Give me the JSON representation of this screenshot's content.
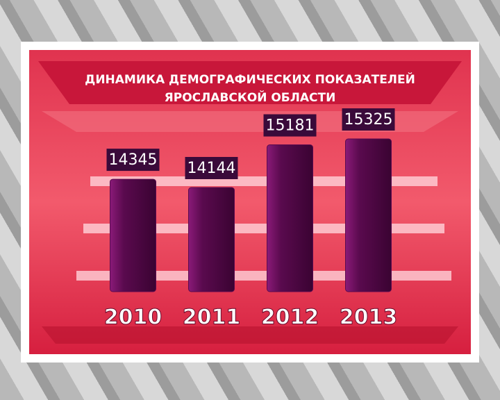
{
  "chart_data": {
    "type": "bar",
    "title": [
      "ДИНАМИКА ДЕМОГРАФИЧЕСКИХ ПОКАЗАТЕЛЕЙ",
      "ЯРОСЛАВСКОЙ ОБЛАСТИ"
    ],
    "categories": [
      "2010",
      "2011",
      "2012",
      "2013"
    ],
    "values": [
      14345,
      14144,
      15181,
      15325
    ],
    "color": "#5a0a4e"
  }
}
